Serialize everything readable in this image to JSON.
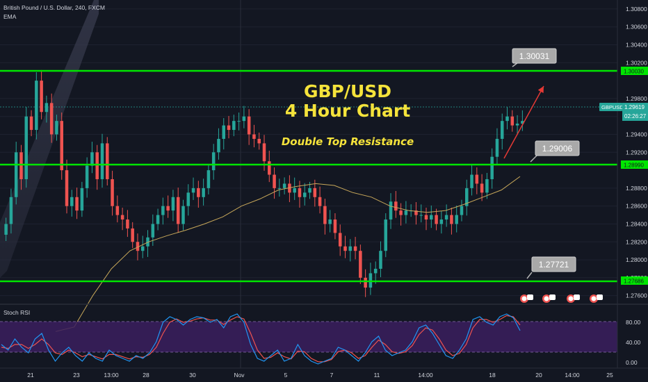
{
  "header": {
    "symbol_line": "British Pound / U.S. Dollar, 240, FXCM",
    "indicator": "EMA"
  },
  "annotations": {
    "title_line1": "GBP/USD",
    "title_line2": "4 Hour Chart",
    "subtitle": "Double Top Resistance",
    "callouts": [
      "1.30031",
      "1.29006",
      "1.27721"
    ]
  },
  "price_axis": {
    "ticks": [
      "1.30800",
      "1.30600",
      "1.30400",
      "1.30200",
      "1.29800",
      "1.29600",
      "1.29400",
      "1.29200",
      "1.28800",
      "1.28600",
      "1.28400",
      "1.28200",
      "1.28000",
      "1.27800",
      "1.27600"
    ],
    "level_tags": [
      "1.30030",
      "1.28990",
      "1.27686"
    ],
    "ticker": "GBPUSD",
    "last_price": "1.29619",
    "countdown": "02:26:27"
  },
  "time_axis": {
    "labels": [
      "21",
      "23",
      "13:00",
      "28",
      "30",
      "Nov",
      "5",
      "7",
      "11",
      "14:00",
      "18",
      "20",
      "14:00",
      "25"
    ]
  },
  "rsi_panel": {
    "label": "Stoch RSI",
    "ticks": [
      "80.00",
      "40.00",
      "0.00"
    ]
  },
  "colors": {
    "background": "#131722",
    "level_line": "#00e600",
    "title_text": "#f5e33b",
    "bull": "#26a69a",
    "bear": "#ef5350",
    "ema": "#c8a85a",
    "rsi_band": "#3b1f5e",
    "stoch_k": "#2196f3",
    "stoch_d": "#ef5350",
    "arrow": "#e53935"
  },
  "chart_data": {
    "type": "candlestick",
    "symbol": "GBPUSD",
    "timeframe": "240",
    "y_range": [
      1.2752,
      1.309
    ],
    "horizontal_levels": [
      1.3003,
      1.2899,
      1.27686
    ],
    "closes": [
      1.284,
      1.287,
      1.292,
      1.289,
      1.296,
      1.2945,
      1.3,
      1.2965,
      1.2975,
      1.294,
      1.2955,
      1.29,
      1.286,
      1.287,
      1.2855,
      1.288,
      1.2905,
      1.292,
      1.289,
      1.293,
      1.289,
      1.286,
      1.285,
      1.2845,
      1.2835,
      1.282,
      1.281,
      1.2815,
      1.2825,
      1.284,
      1.285,
      1.286,
      1.2855,
      1.287,
      1.284,
      1.286,
      1.2875,
      1.288,
      1.287,
      1.288,
      1.29,
      1.292,
      1.2935,
      1.295,
      1.2945,
      1.2955,
      1.2955,
      1.296,
      1.294,
      1.2935,
      1.293,
      1.291,
      1.2895,
      1.288,
      1.288,
      1.2885,
      1.2875,
      1.288,
      1.287,
      1.2875,
      1.288,
      1.287,
      1.286,
      1.284,
      1.2845,
      1.283,
      1.2815,
      1.281,
      1.2815,
      1.281,
      1.278,
      1.2769,
      1.2785,
      1.279,
      1.281,
      1.2845,
      1.2865,
      1.2855,
      1.285,
      1.2855,
      1.2855,
      1.285,
      1.285,
      1.2845,
      1.285,
      1.284,
      1.2845,
      1.285,
      1.284,
      1.285,
      1.286,
      1.288,
      1.2895,
      1.2885,
      1.2875,
      1.289,
      1.2915,
      1.2935,
      1.2955,
      1.296,
      1.295,
      1.2952,
      1.2955
    ],
    "ema": [
      1.272,
      1.2725,
      1.276,
      1.279,
      1.281,
      1.282,
      1.2827,
      1.2833,
      1.284,
      1.2848,
      1.286,
      1.2868,
      1.2878,
      1.2882,
      1.2885,
      1.2883,
      1.2875,
      1.287,
      1.286,
      1.2855,
      1.2853,
      1.2855,
      1.2862,
      1.287,
      1.2878,
      1.2893
    ],
    "price_axis_ticks": [
      1.308,
      1.306,
      1.304,
      1.302,
      1.298,
      1.296,
      1.294,
      1.292,
      1.288,
      1.286,
      1.284,
      1.282,
      1.28,
      1.278,
      1.276
    ],
    "stoch_rsi": {
      "range": [
        0,
        100
      ],
      "band": [
        20,
        80
      ],
      "k": [
        40,
        30,
        50,
        35,
        25,
        50,
        60,
        30,
        10,
        25,
        35,
        20,
        10,
        25,
        15,
        10,
        30,
        20,
        15,
        10,
        20,
        15,
        25,
        45,
        80,
        90,
        85,
        75,
        85,
        90,
        88,
        80,
        85,
        70,
        90,
        95,
        80,
        40,
        15,
        10,
        20,
        30,
        10,
        15,
        40,
        20,
        10,
        5,
        10,
        15,
        35,
        30,
        20,
        10,
        25,
        45,
        55,
        30,
        20,
        25,
        30,
        45,
        70,
        75,
        60,
        40,
        20,
        15,
        30,
        50,
        85,
        90,
        80,
        75,
        90,
        95,
        88,
        65
      ],
      "d": [
        35,
        33,
        40,
        40,
        33,
        40,
        50,
        40,
        25,
        22,
        30,
        25,
        18,
        22,
        18,
        14,
        22,
        22,
        18,
        14,
        18,
        17,
        22,
        35,
        60,
        80,
        86,
        80,
        82,
        86,
        88,
        84,
        84,
        76,
        84,
        90,
        86,
        60,
        30,
        15,
        17,
        25,
        18,
        14,
        28,
        27,
        15,
        9,
        9,
        13,
        27,
        30,
        25,
        15,
        20,
        35,
        48,
        40,
        27,
        24,
        27,
        38,
        58,
        70,
        66,
        50,
        30,
        20,
        24,
        40,
        70,
        85,
        85,
        80,
        85,
        92,
        90,
        75
      ],
      "ticks": [
        80,
        40,
        0
      ]
    }
  }
}
